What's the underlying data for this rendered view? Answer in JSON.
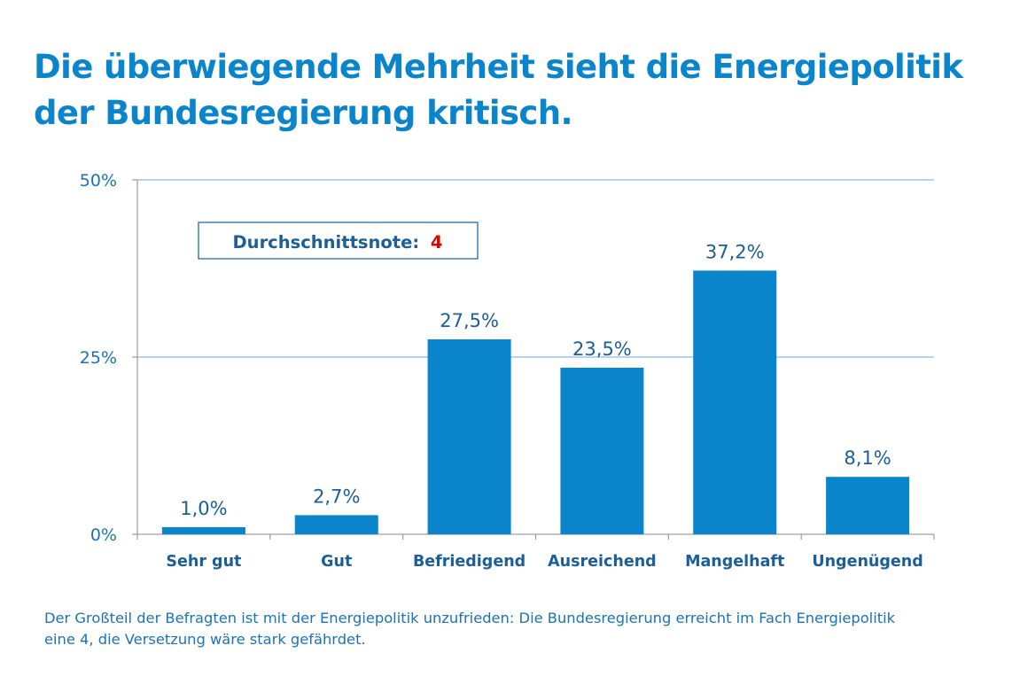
{
  "title": {
    "line1": "Die überwiegende Mehrheit sieht die Energiepolitik",
    "line2": "der Bundesregierung kritisch."
  },
  "badge": {
    "label": "Durchschnittsnote:",
    "value": "4"
  },
  "caption": {
    "line1": "Der Großteil der Befragten ist mit der Energiepolitik unzufrieden: Die Bundesregierung erreicht im Fach Energiepolitik",
    "line2": "eine 4, die Versetzung wäre stark gefährdet."
  },
  "colors": {
    "title": "#0a84cb",
    "bar": "#0a84cb",
    "axis_text": "#1a73b8",
    "label_text": "#1a5e9a",
    "badge_value": "#e00000",
    "gridline": "#6aaee0"
  },
  "chart_data": {
    "type": "bar",
    "categories": [
      "Sehr gut",
      "Gut",
      "Befriedigend",
      "Ausreichend",
      "Mangelhaft",
      "Ungenügend"
    ],
    "values": [
      1.0,
      2.7,
      27.5,
      23.5,
      37.2,
      8.1
    ],
    "value_labels": [
      "1,0%",
      "2,7%",
      "27,5%",
      "23,5%",
      "37,2%",
      "8,1%"
    ],
    "ylim": [
      0,
      50
    ],
    "yticks": [
      0,
      25,
      50
    ],
    "ytick_labels": [
      "0%",
      "25%",
      "50%"
    ],
    "grid": true
  }
}
